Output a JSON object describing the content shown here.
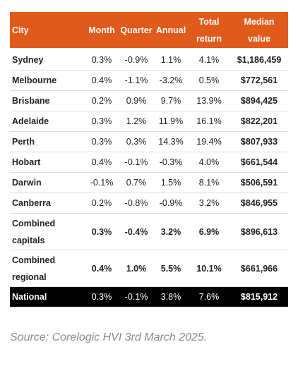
{
  "table": {
    "header": [
      "City",
      "Month",
      "Quarter",
      "Annual",
      "Total return",
      "Median value"
    ],
    "rows": [
      [
        "Sydney",
        "0.3%",
        "-0.9%",
        "1.1%",
        "4.1%",
        "$1,186,459"
      ],
      [
        "Melbourne",
        "0.4%",
        "-1.1%",
        "-3.2%",
        "0.5%",
        "$772,561"
      ],
      [
        "Brisbane",
        "0.2%",
        "0.9%",
        "9.7%",
        "13.9%",
        "$894,425"
      ],
      [
        "Adelaide",
        "0.3%",
        "1.2%",
        "11.9%",
        "16.1%",
        "$822,201"
      ],
      [
        "Perth",
        "0.3%",
        "0.3%",
        "14.3%",
        "19.4%",
        "$807,933"
      ],
      [
        "Hobart",
        "0.4%",
        "-0.1%",
        "-0.3%",
        "4.0%",
        "$661,544"
      ],
      [
        "Darwin",
        "-0.1%",
        "0.7%",
        "1.5%",
        "8.1%",
        "$506,591"
      ],
      [
        "Canberra",
        "0.2%",
        "-0.8%",
        "-0.9%",
        "3.2%",
        "$846,955"
      ],
      [
        "Combined capitals",
        "0.3%",
        "-0.4%",
        "3.2%",
        "6.9%",
        "$896,613"
      ],
      [
        "Combined regional",
        "0.4%",
        "1.0%",
        "5.5%",
        "10.1%",
        "$661,966"
      ],
      [
        "National",
        "0.3%",
        "-0.1%",
        "3.8%",
        "7.6%",
        "$815,912"
      ]
    ]
  },
  "source": "Source: Corelogic HVI 3rd March 2025."
}
